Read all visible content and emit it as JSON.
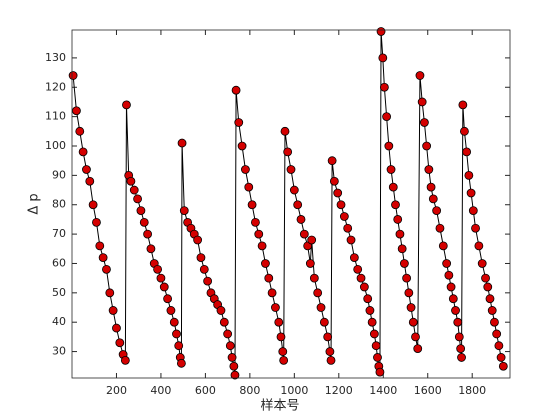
{
  "chart_data": {
    "type": "line",
    "xlabel": "样本号",
    "ylabel": "Δ p",
    "x": [
      5,
      20,
      35,
      50,
      65,
      80,
      95,
      110,
      125,
      140,
      155,
      170,
      185,
      200,
      215,
      230,
      240,
      245,
      255,
      265,
      280,
      295,
      310,
      325,
      340,
      355,
      370,
      385,
      400,
      415,
      430,
      445,
      460,
      470,
      480,
      487,
      492,
      495,
      505,
      520,
      535,
      550,
      565,
      580,
      595,
      610,
      625,
      640,
      655,
      670,
      685,
      700,
      712,
      720,
      728,
      733,
      738,
      750,
      765,
      780,
      795,
      810,
      825,
      840,
      855,
      870,
      885,
      900,
      915,
      930,
      940,
      948,
      952,
      958,
      970,
      985,
      1000,
      1015,
      1030,
      1045,
      1060,
      1072,
      1078,
      1090,
      1105,
      1120,
      1135,
      1150,
      1160,
      1165,
      1170,
      1180,
      1195,
      1210,
      1225,
      1240,
      1255,
      1270,
      1285,
      1300,
      1315,
      1330,
      1340,
      1350,
      1360,
      1368,
      1374,
      1380,
      1385,
      1390,
      1398,
      1405,
      1415,
      1425,
      1435,
      1445,
      1455,
      1465,
      1475,
      1485,
      1495,
      1505,
      1515,
      1525,
      1535,
      1545,
      1555,
      1565,
      1575,
      1585,
      1595,
      1605,
      1615,
      1625,
      1640,
      1655,
      1670,
      1685,
      1695,
      1705,
      1715,
      1725,
      1735,
      1742,
      1748,
      1752,
      1758,
      1765,
      1775,
      1785,
      1795,
      1805,
      1815,
      1830,
      1845,
      1860,
      1870,
      1880,
      1890,
      1900,
      1910,
      1920,
      1930,
      1940
    ],
    "values": [
      124,
      112,
      105,
      98,
      92,
      88,
      80,
      74,
      66,
      62,
      58,
      50,
      44,
      38,
      33,
      29,
      27,
      114,
      90,
      88,
      85,
      82,
      78,
      74,
      70,
      65,
      60,
      58,
      55,
      52,
      48,
      44,
      40,
      36,
      32,
      28,
      26,
      101,
      78,
      74,
      72,
      70,
      68,
      62,
      58,
      54,
      50,
      48,
      46,
      44,
      40,
      36,
      32,
      28,
      25,
      22,
      119,
      108,
      100,
      92,
      86,
      80,
      74,
      70,
      66,
      60,
      55,
      50,
      45,
      40,
      35,
      30,
      27,
      105,
      98,
      92,
      85,
      80,
      75,
      70,
      66,
      60,
      68,
      55,
      50,
      45,
      40,
      35,
      30,
      27,
      95,
      88,
      84,
      80,
      76,
      72,
      68,
      62,
      58,
      55,
      52,
      48,
      44,
      40,
      36,
      32,
      28,
      25,
      23,
      139,
      130,
      120,
      110,
      100,
      92,
      86,
      80,
      75,
      70,
      65,
      60,
      55,
      50,
      45,
      40,
      35,
      31,
      124,
      115,
      108,
      100,
      92,
      86,
      82,
      78,
      72,
      66,
      60,
      56,
      52,
      48,
      44,
      40,
      35,
      31,
      28,
      114,
      105,
      98,
      90,
      84,
      78,
      72,
      66,
      60,
      55,
      52,
      48,
      44,
      40,
      36,
      32,
      28,
      25
    ],
    "color": "#000000",
    "marker_color": "#d40000",
    "xlim": [
      0,
      1970
    ],
    "ylim": [
      21,
      139.5
    ],
    "xticks": [
      200,
      400,
      600,
      800,
      1000,
      1200,
      1400,
      1600,
      1800
    ],
    "yticks": [
      30,
      40,
      50,
      60,
      70,
      80,
      90,
      100,
      110,
      120,
      130
    ],
    "grid": false
  }
}
